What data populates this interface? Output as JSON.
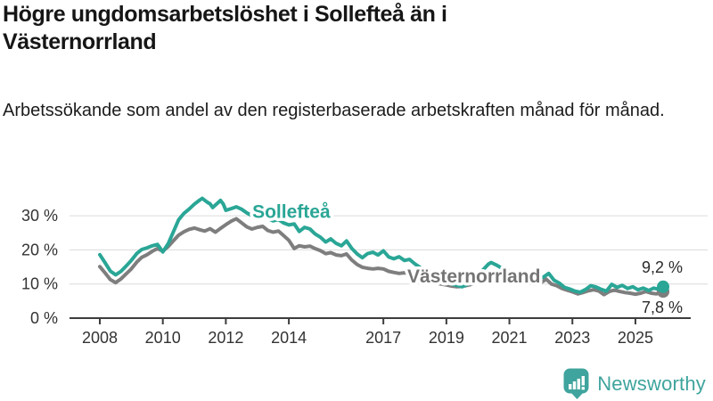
{
  "header": {
    "title": "Högre ungdomsarbetslöshet i Sollefteå än i Västernorrland",
    "subtitle": "Arbetssökande som andel av den registerbaserade arbetskraften månad för månad."
  },
  "footer": {
    "brand": "Newsworthy",
    "brand_color": "#3fa49d"
  },
  "chart_data": {
    "type": "line",
    "title": "Högre ungdomsarbetslöshet i Sollefteå än i Västernorrland",
    "xlabel": "",
    "ylabel": "",
    "xlim": [
      2007.55,
      2026.3
    ],
    "ylim": [
      0,
      36
    ],
    "grid": "horizontal",
    "grid_color": "#dcdcdc",
    "axis_color": "#3d3d3d",
    "legend_position": "inline-labels",
    "y_ticks": {
      "values": [
        0,
        10,
        20,
        30
      ],
      "labels": [
        "0 %",
        "10 %",
        "20 %",
        "30 %"
      ]
    },
    "x_ticks": {
      "values": [
        2008,
        2010,
        2012,
        2014,
        2017,
        2019,
        2021,
        2023,
        2025
      ],
      "labels": [
        "2008",
        "2010",
        "2012",
        "2014",
        "2017",
        "2019",
        "2021",
        "2023",
        "2025"
      ]
    },
    "series": [
      {
        "id": "solleftea",
        "name": "Sollefteå",
        "color": "#2aa696",
        "label_color": "#2aa696",
        "label_x": 2012.84,
        "label_y": 29.4,
        "end_label": "9,2 %",
        "end_label_value": 13.3,
        "end_value": 9.2,
        "points": [
          [
            2008.0,
            18.6
          ],
          [
            2008.17,
            16.2
          ],
          [
            2008.33,
            13.8
          ],
          [
            2008.5,
            12.7
          ],
          [
            2008.67,
            13.7
          ],
          [
            2008.83,
            15.2
          ],
          [
            2009.0,
            16.9
          ],
          [
            2009.17,
            18.9
          ],
          [
            2009.33,
            20.1
          ],
          [
            2009.5,
            20.6
          ],
          [
            2009.67,
            21.2
          ],
          [
            2009.83,
            21.6
          ],
          [
            2010.0,
            19.4
          ],
          [
            2010.17,
            21.8
          ],
          [
            2010.33,
            25.2
          ],
          [
            2010.5,
            28.8
          ],
          [
            2010.67,
            30.7
          ],
          [
            2010.83,
            31.9
          ],
          [
            2011.0,
            33.4
          ],
          [
            2011.17,
            34.6
          ],
          [
            2011.25,
            35.1
          ],
          [
            2011.42,
            33.9
          ],
          [
            2011.5,
            33.5
          ],
          [
            2011.58,
            32.4
          ],
          [
            2011.75,
            33.8
          ],
          [
            2011.83,
            34.5
          ],
          [
            2011.92,
            33.4
          ],
          [
            2012.0,
            31.6
          ],
          [
            2012.17,
            32.1
          ],
          [
            2012.33,
            32.6
          ],
          [
            2012.5,
            31.9
          ],
          [
            2012.67,
            30.8
          ],
          [
            2012.83,
            30.0
          ],
          [
            2013.0,
            31.0
          ],
          [
            2013.17,
            30.3
          ],
          [
            2013.33,
            29.3
          ],
          [
            2013.5,
            28.5
          ],
          [
            2013.67,
            28.9
          ],
          [
            2013.83,
            27.9
          ],
          [
            2014.0,
            27.3
          ],
          [
            2014.17,
            27.6
          ],
          [
            2014.33,
            25.4
          ],
          [
            2014.5,
            26.6
          ],
          [
            2014.67,
            26.1
          ],
          [
            2014.83,
            24.7
          ],
          [
            2015.0,
            23.7
          ],
          [
            2015.17,
            22.3
          ],
          [
            2015.33,
            23.2
          ],
          [
            2015.5,
            21.9
          ],
          [
            2015.67,
            21.2
          ],
          [
            2015.83,
            22.6
          ],
          [
            2016.0,
            20.4
          ],
          [
            2016.17,
            18.8
          ],
          [
            2016.33,
            17.7
          ],
          [
            2016.5,
            18.9
          ],
          [
            2016.67,
            19.3
          ],
          [
            2016.83,
            18.5
          ],
          [
            2017.0,
            19.7
          ],
          [
            2017.17,
            17.9
          ],
          [
            2017.33,
            17.4
          ],
          [
            2017.5,
            18.0
          ],
          [
            2017.67,
            16.9
          ],
          [
            2017.83,
            17.2
          ],
          [
            2018.0,
            15.9
          ],
          [
            2018.17,
            14.8
          ],
          [
            2018.33,
            13.6
          ],
          [
            2018.5,
            12.6
          ],
          [
            2018.67,
            11.8
          ],
          [
            2018.83,
            11.1
          ],
          [
            2019.0,
            10.5
          ],
          [
            2019.17,
            10.0
          ],
          [
            2019.33,
            9.6
          ],
          [
            2019.5,
            9.2
          ],
          [
            2019.67,
            9.9
          ],
          [
            2019.83,
            10.9
          ],
          [
            2020.0,
            12.1
          ],
          [
            2020.17,
            14.2
          ],
          [
            2020.33,
            15.8
          ],
          [
            2020.42,
            16.3
          ],
          [
            2020.58,
            15.6
          ],
          [
            2020.75,
            14.7
          ],
          [
            2020.92,
            14.0
          ],
          [
            2021.08,
            13.4
          ],
          [
            2021.25,
            12.9
          ],
          [
            2021.42,
            12.5
          ],
          [
            2021.58,
            12.1
          ],
          [
            2021.75,
            11.8
          ],
          [
            2021.92,
            11.7
          ],
          [
            2022.08,
            12.0
          ],
          [
            2022.25,
            13.1
          ],
          [
            2022.42,
            11.1
          ],
          [
            2022.58,
            10.3
          ],
          [
            2022.75,
            9.0
          ],
          [
            2022.92,
            8.5
          ],
          [
            2023.08,
            7.9
          ],
          [
            2023.25,
            7.6
          ],
          [
            2023.42,
            8.4
          ],
          [
            2023.58,
            9.5
          ],
          [
            2023.75,
            9.1
          ],
          [
            2023.92,
            8.4
          ],
          [
            2024.08,
            7.9
          ],
          [
            2024.25,
            9.9
          ],
          [
            2024.42,
            9.0
          ],
          [
            2024.58,
            9.6
          ],
          [
            2024.75,
            8.7
          ],
          [
            2024.92,
            9.2
          ],
          [
            2025.08,
            8.3
          ],
          [
            2025.25,
            8.8
          ],
          [
            2025.42,
            8.1
          ],
          [
            2025.58,
            8.8
          ],
          [
            2025.75,
            8.4
          ],
          [
            2025.88,
            9.2
          ]
        ]
      },
      {
        "id": "vasternorrland",
        "name": "Västernorrland",
        "color": "#7e7e7e",
        "label_color": "#747474",
        "label_x": 2017.76,
        "label_y": 10.45,
        "end_label": "7,8 %",
        "end_label_value": 1.6,
        "end_value": 7.8,
        "points": [
          [
            2008.0,
            15.1
          ],
          [
            2008.17,
            13.2
          ],
          [
            2008.33,
            11.3
          ],
          [
            2008.5,
            10.4
          ],
          [
            2008.67,
            11.5
          ],
          [
            2008.83,
            12.9
          ],
          [
            2009.0,
            14.4
          ],
          [
            2009.17,
            16.4
          ],
          [
            2009.33,
            17.8
          ],
          [
            2009.5,
            18.6
          ],
          [
            2009.67,
            19.6
          ],
          [
            2009.83,
            20.4
          ],
          [
            2010.0,
            19.6
          ],
          [
            2010.17,
            21.0
          ],
          [
            2010.33,
            22.6
          ],
          [
            2010.5,
            24.3
          ],
          [
            2010.67,
            25.3
          ],
          [
            2010.83,
            26.0
          ],
          [
            2011.0,
            26.4
          ],
          [
            2011.17,
            25.9
          ],
          [
            2011.33,
            25.5
          ],
          [
            2011.5,
            26.2
          ],
          [
            2011.67,
            25.2
          ],
          [
            2011.83,
            26.3
          ],
          [
            2012.0,
            27.4
          ],
          [
            2012.17,
            28.4
          ],
          [
            2012.33,
            29.1
          ],
          [
            2012.5,
            27.9
          ],
          [
            2012.67,
            26.7
          ],
          [
            2012.83,
            26.1
          ],
          [
            2013.0,
            26.6
          ],
          [
            2013.17,
            26.9
          ],
          [
            2013.33,
            25.7
          ],
          [
            2013.5,
            25.2
          ],
          [
            2013.67,
            25.5
          ],
          [
            2013.83,
            24.2
          ],
          [
            2014.0,
            22.8
          ],
          [
            2014.17,
            20.4
          ],
          [
            2014.33,
            21.2
          ],
          [
            2014.5,
            20.9
          ],
          [
            2014.67,
            21.1
          ],
          [
            2014.83,
            20.4
          ],
          [
            2015.0,
            19.8
          ],
          [
            2015.17,
            18.9
          ],
          [
            2015.33,
            19.2
          ],
          [
            2015.5,
            18.5
          ],
          [
            2015.67,
            18.3
          ],
          [
            2015.83,
            18.8
          ],
          [
            2016.0,
            17.0
          ],
          [
            2016.17,
            15.7
          ],
          [
            2016.33,
            14.9
          ],
          [
            2016.5,
            14.6
          ],
          [
            2016.67,
            14.4
          ],
          [
            2016.83,
            14.6
          ],
          [
            2017.0,
            14.4
          ],
          [
            2017.17,
            13.7
          ],
          [
            2017.33,
            13.4
          ],
          [
            2017.5,
            13.1
          ],
          [
            2017.67,
            13.3
          ],
          [
            2017.83,
            13.0
          ],
          [
            2018.0,
            12.4
          ],
          [
            2018.17,
            11.8
          ],
          [
            2018.33,
            11.2
          ],
          [
            2018.5,
            10.7
          ],
          [
            2018.67,
            10.3
          ],
          [
            2018.83,
            10.0
          ],
          [
            2019.0,
            9.7
          ],
          [
            2019.17,
            9.4
          ],
          [
            2019.33,
            9.2
          ],
          [
            2019.5,
            9.3
          ],
          [
            2019.67,
            9.6
          ],
          [
            2019.83,
            10.0
          ],
          [
            2020.0,
            10.7
          ],
          [
            2020.17,
            12.1
          ],
          [
            2020.33,
            13.2
          ],
          [
            2020.5,
            12.8
          ],
          [
            2020.67,
            12.3
          ],
          [
            2020.83,
            11.8
          ],
          [
            2021.0,
            11.4
          ],
          [
            2021.17,
            11.0
          ],
          [
            2021.33,
            10.7
          ],
          [
            2021.5,
            10.4
          ],
          [
            2021.67,
            10.2
          ],
          [
            2021.83,
            10.1
          ],
          [
            2022.0,
            10.4
          ],
          [
            2022.17,
            11.4
          ],
          [
            2022.33,
            10.0
          ],
          [
            2022.5,
            9.5
          ],
          [
            2022.67,
            8.7
          ],
          [
            2022.83,
            8.2
          ],
          [
            2023.0,
            7.7
          ],
          [
            2023.17,
            7.1
          ],
          [
            2023.33,
            7.5
          ],
          [
            2023.5,
            8.0
          ],
          [
            2023.67,
            8.3
          ],
          [
            2023.83,
            8.0
          ],
          [
            2024.0,
            6.9
          ],
          [
            2024.17,
            7.8
          ],
          [
            2024.33,
            8.2
          ],
          [
            2024.5,
            7.8
          ],
          [
            2024.67,
            7.5
          ],
          [
            2024.83,
            7.3
          ],
          [
            2025.0,
            7.0
          ],
          [
            2025.17,
            7.3
          ],
          [
            2025.33,
            7.8
          ],
          [
            2025.5,
            7.3
          ],
          [
            2025.67,
            7.1
          ],
          [
            2025.88,
            7.8
          ]
        ]
      }
    ]
  }
}
